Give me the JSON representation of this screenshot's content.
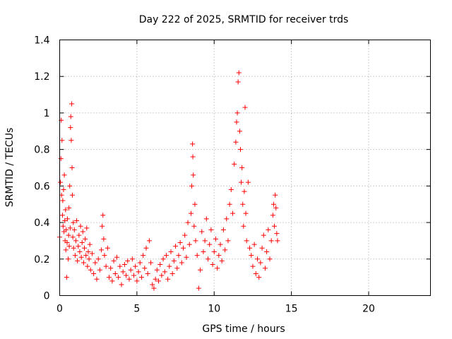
{
  "chart_data": {
    "type": "scatter",
    "title": "Day 222 of 2025, SRMTID for receiver trds",
    "xlabel": "GPS time / hours",
    "ylabel": "SRMTID / TECUs",
    "xlim": [
      0,
      24
    ],
    "ylim": [
      0,
      1.4
    ],
    "xticks": [
      "0",
      "5",
      "10",
      "15",
      "20"
    ],
    "xtick_values": [
      0,
      5,
      10,
      15,
      20
    ],
    "yticks": [
      "0",
      "0.2",
      "0.4",
      "0.6",
      "0.8",
      "1",
      "1.2",
      "1.4"
    ],
    "ytick_values": [
      0,
      0.2,
      0.4,
      0.6,
      0.8,
      1.0,
      1.2,
      1.4
    ],
    "grid": true,
    "marker": "+",
    "color": "#ff0000",
    "series": [
      {
        "name": "SRMTID",
        "points": [
          [
            0.0,
            0.32
          ],
          [
            0.05,
            0.62
          ],
          [
            0.08,
            0.75
          ],
          [
            0.1,
            0.96
          ],
          [
            0.12,
            0.55
          ],
          [
            0.15,
            0.85
          ],
          [
            0.18,
            0.44
          ],
          [
            0.2,
            0.52
          ],
          [
            0.22,
            0.38
          ],
          [
            0.25,
            0.58
          ],
          [
            0.28,
            0.35
          ],
          [
            0.3,
            0.66
          ],
          [
            0.33,
            0.41
          ],
          [
            0.35,
            0.3
          ],
          [
            0.38,
            0.47
          ],
          [
            0.4,
            0.25
          ],
          [
            0.42,
            0.36
          ],
          [
            0.45,
            0.1
          ],
          [
            0.48,
            0.29
          ],
          [
            0.5,
            0.42
          ],
          [
            0.55,
            0.2
          ],
          [
            0.58,
            0.33
          ],
          [
            0.6,
            0.48
          ],
          [
            0.62,
            0.27
          ],
          [
            0.65,
            0.6
          ],
          [
            0.68,
            0.37
          ],
          [
            0.7,
            0.92
          ],
          [
            0.72,
            0.98
          ],
          [
            0.75,
            0.85
          ],
          [
            0.78,
            1.05
          ],
          [
            0.8,
            0.7
          ],
          [
            0.82,
            0.55
          ],
          [
            0.85,
            0.32
          ],
          [
            0.88,
            0.4
          ],
          [
            0.9,
            0.26
          ],
          [
            0.95,
            0.36
          ],
          [
            1.0,
            0.22
          ],
          [
            1.05,
            0.3
          ],
          [
            1.1,
            0.41
          ],
          [
            1.15,
            0.19
          ],
          [
            1.2,
            0.27
          ],
          [
            1.25,
            0.33
          ],
          [
            1.3,
            0.24
          ],
          [
            1.35,
            0.38
          ],
          [
            1.4,
            0.21
          ],
          [
            1.45,
            0.29
          ],
          [
            1.5,
            0.35
          ],
          [
            1.55,
            0.18
          ],
          [
            1.6,
            0.26
          ],
          [
            1.65,
            0.31
          ],
          [
            1.7,
            0.22
          ],
          [
            1.75,
            0.37
          ],
          [
            1.8,
            0.16
          ],
          [
            1.85,
            0.24
          ],
          [
            1.9,
            0.2
          ],
          [
            1.95,
            0.28
          ],
          [
            2.0,
            0.14
          ],
          [
            2.1,
            0.23
          ],
          [
            2.2,
            0.12
          ],
          [
            2.3,
            0.18
          ],
          [
            2.4,
            0.09
          ],
          [
            2.5,
            0.2
          ],
          [
            2.6,
            0.14
          ],
          [
            2.7,
            0.25
          ],
          [
            2.75,
            0.38
          ],
          [
            2.8,
            0.44
          ],
          [
            2.85,
            0.31
          ],
          [
            2.9,
            0.22
          ],
          [
            3.0,
            0.16
          ],
          [
            3.1,
            0.26
          ],
          [
            3.2,
            0.1
          ],
          [
            3.3,
            0.15
          ],
          [
            3.4,
            0.08
          ],
          [
            3.5,
            0.19
          ],
          [
            3.6,
            0.12
          ],
          [
            3.7,
            0.21
          ],
          [
            3.8,
            0.1
          ],
          [
            3.9,
            0.16
          ],
          [
            4.0,
            0.06
          ],
          [
            4.1,
            0.13
          ],
          [
            4.2,
            0.17
          ],
          [
            4.3,
            0.11
          ],
          [
            4.4,
            0.19
          ],
          [
            4.5,
            0.09
          ],
          [
            4.6,
            0.14
          ],
          [
            4.7,
            0.2
          ],
          [
            4.8,
            0.11
          ],
          [
            4.9,
            0.16
          ],
          [
            5.0,
            0.08
          ],
          [
            5.1,
            0.13
          ],
          [
            5.2,
            0.18
          ],
          [
            5.3,
            0.1
          ],
          [
            5.4,
            0.22
          ],
          [
            5.5,
            0.15
          ],
          [
            5.6,
            0.26
          ],
          [
            5.7,
            0.12
          ],
          [
            5.8,
            0.3
          ],
          [
            5.9,
            0.18
          ],
          [
            6.0,
            0.06
          ],
          [
            6.1,
            0.04
          ],
          [
            6.2,
            0.09
          ],
          [
            6.3,
            0.14
          ],
          [
            6.4,
            0.08
          ],
          [
            6.5,
            0.17
          ],
          [
            6.6,
            0.11
          ],
          [
            6.7,
            0.2
          ],
          [
            6.8,
            0.13
          ],
          [
            6.9,
            0.22
          ],
          [
            7.0,
            0.09
          ],
          [
            7.1,
            0.16
          ],
          [
            7.2,
            0.24
          ],
          [
            7.3,
            0.12
          ],
          [
            7.4,
            0.19
          ],
          [
            7.5,
            0.27
          ],
          [
            7.6,
            0.15
          ],
          [
            7.7,
            0.22
          ],
          [
            7.8,
            0.29
          ],
          [
            7.9,
            0.18
          ],
          [
            8.0,
            0.26
          ],
          [
            8.1,
            0.33
          ],
          [
            8.2,
            0.21
          ],
          [
            8.3,
            0.4
          ],
          [
            8.4,
            0.28
          ],
          [
            8.5,
            0.45
          ],
          [
            8.55,
            0.6
          ],
          [
            8.6,
            0.83
          ],
          [
            8.62,
            0.76
          ],
          [
            8.65,
            0.66
          ],
          [
            8.7,
            0.38
          ],
          [
            8.75,
            0.5
          ],
          [
            8.8,
            0.3
          ],
          [
            8.9,
            0.22
          ],
          [
            9.0,
            0.04
          ],
          [
            9.1,
            0.14
          ],
          [
            9.2,
            0.35
          ],
          [
            9.3,
            0.24
          ],
          [
            9.4,
            0.3
          ],
          [
            9.5,
            0.42
          ],
          [
            9.6,
            0.2
          ],
          [
            9.7,
            0.28
          ],
          [
            9.8,
            0.36
          ],
          [
            9.9,
            0.17
          ],
          [
            10.0,
            0.24
          ],
          [
            10.1,
            0.31
          ],
          [
            10.2,
            0.15
          ],
          [
            10.3,
            0.22
          ],
          [
            10.4,
            0.28
          ],
          [
            10.5,
            0.19
          ],
          [
            10.6,
            0.36
          ],
          [
            10.7,
            0.25
          ],
          [
            10.8,
            0.42
          ],
          [
            10.9,
            0.3
          ],
          [
            11.0,
            0.5
          ],
          [
            11.1,
            0.58
          ],
          [
            11.2,
            0.45
          ],
          [
            11.3,
            0.72
          ],
          [
            11.4,
            0.84
          ],
          [
            11.45,
            0.95
          ],
          [
            11.5,
            1.0
          ],
          [
            11.55,
            1.17
          ],
          [
            11.6,
            1.22
          ],
          [
            11.65,
            0.9
          ],
          [
            11.7,
            0.8
          ],
          [
            11.75,
            0.62
          ],
          [
            11.8,
            0.7
          ],
          [
            11.85,
            0.5
          ],
          [
            11.9,
            0.38
          ],
          [
            11.95,
            0.57
          ],
          [
            12.0,
            1.03
          ],
          [
            12.05,
            0.45
          ],
          [
            12.1,
            0.3
          ],
          [
            12.2,
            0.62
          ],
          [
            12.3,
            0.26
          ],
          [
            12.4,
            0.22
          ],
          [
            12.5,
            0.16
          ],
          [
            12.6,
            0.28
          ],
          [
            12.7,
            0.12
          ],
          [
            12.8,
            0.2
          ],
          [
            12.9,
            0.1
          ],
          [
            13.0,
            0.18
          ],
          [
            13.1,
            0.26
          ],
          [
            13.2,
            0.33
          ],
          [
            13.3,
            0.15
          ],
          [
            13.4,
            0.24
          ],
          [
            13.5,
            0.36
          ],
          [
            13.6,
            0.2
          ],
          [
            13.7,
            0.3
          ],
          [
            13.8,
            0.44
          ],
          [
            13.85,
            0.5
          ],
          [
            13.9,
            0.38
          ],
          [
            13.95,
            0.55
          ],
          [
            14.0,
            0.48
          ],
          [
            14.05,
            0.34
          ],
          [
            14.1,
            0.3
          ]
        ]
      }
    ]
  }
}
